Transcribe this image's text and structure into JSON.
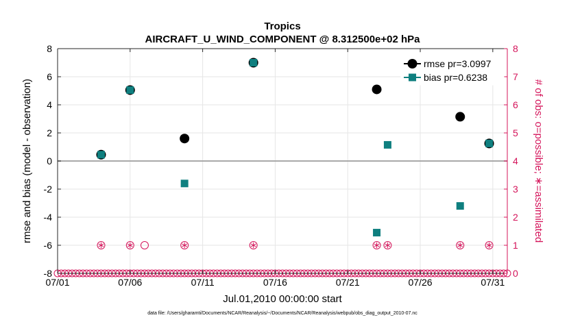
{
  "chart_data": {
    "type": "scatter",
    "title": "Tropics",
    "subtitle": "AIRCRAFT_U_WIND_COMPONENT @ 8.312500e+02 hPa",
    "xlabel": "Jul.01,2010 00:00:00 start",
    "ylabel": "rmse and bias (model - observation)",
    "y2label": "# of obs: o=possible; ∗=assimilated",
    "footnote": "data file: /Users/gharamti/Documents/NCAR/Reanalysis/~/Documents/NCAR/Reanalysis/webpub/obs_diag_output_2010-07.nc",
    "xlim": [
      1,
      32
    ],
    "ylim": [
      -8,
      8
    ],
    "y2lim": [
      0,
      8
    ],
    "xticks": [
      1,
      6,
      11,
      16,
      21,
      26,
      31
    ],
    "xtick_labels": [
      "07/01",
      "07/06",
      "07/11",
      "07/16",
      "07/21",
      "07/26",
      "07/31"
    ],
    "yticks": [
      -8,
      -6,
      -4,
      -2,
      0,
      2,
      4,
      6,
      8
    ],
    "ytick_labels": [
      "-8",
      "-6",
      "-4",
      "-2",
      "0",
      "2",
      "4",
      "6",
      "8"
    ],
    "y2ticks": [
      0,
      1,
      2,
      3,
      4,
      5,
      6,
      7,
      8
    ],
    "y2tick_labels": [
      "0",
      "1",
      "2",
      "3",
      "4",
      "5",
      "6",
      "7",
      "8"
    ],
    "grid": true,
    "legend_position": "top-right",
    "colors": {
      "rmse": "#000000",
      "bias": "#0f7f7f",
      "obs": "#d4145a",
      "zero_line": "#a8a8a8",
      "grid": "#e6e6e6"
    },
    "series": [
      {
        "name": "rmse pr=3.0997",
        "marker": "circle",
        "x": [
          4,
          6,
          9.75,
          14.5,
          23,
          28.75,
          30.75
        ],
        "values": [
          0.45,
          5.05,
          1.6,
          7.0,
          5.1,
          3.15,
          1.25
        ]
      },
      {
        "name": "bias pr=0.6238",
        "marker": "square",
        "x": [
          4,
          6,
          9.75,
          14.5,
          23,
          23.75,
          28.75,
          30.75
        ],
        "values": [
          0.45,
          5.05,
          -1.6,
          7.0,
          -5.1,
          1.15,
          -3.2,
          1.25
        ]
      }
    ],
    "obs_possible": {
      "x": [
        4,
        6,
        7,
        9.75,
        14.5,
        23,
        23.75,
        28.75,
        30.75
      ],
      "values": [
        1,
        1,
        1,
        1,
        1,
        1,
        1,
        1,
        1
      ]
    },
    "obs_assimilated": {
      "x": [
        4,
        6,
        9.75,
        14.5,
        23,
        23.75,
        28.75,
        30.75
      ],
      "values": [
        1,
        1,
        1,
        1,
        1,
        1,
        1,
        1
      ]
    }
  }
}
